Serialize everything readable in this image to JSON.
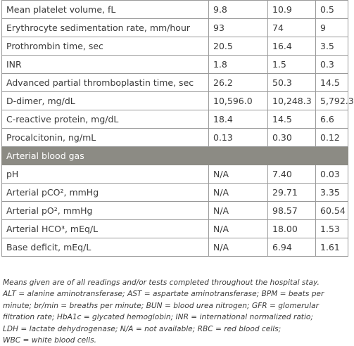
{
  "table": {
    "rows": [
      [
        "Mean platelet volume, fL",
        "9.8",
        "10.9",
        "0.5"
      ],
      [
        "Erythrocyte sedimentation rate, mm/hour",
        "93",
        "74",
        "9"
      ],
      [
        "Prothrombin time, sec",
        "20.5",
        "16.4",
        "3.5"
      ],
      [
        "INR",
        "1.8",
        "1.5",
        "0.3"
      ],
      [
        "Advanced partial thromboplastin time, sec",
        "26.2",
        "50.3",
        "14.5"
      ],
      [
        "D-dimer, mg/dL",
        "10,596.0",
        "10,248.3",
        "5,792.3"
      ],
      [
        "C-reactive protein, mg/dL",
        "18.4",
        "14.5",
        "6.6"
      ],
      [
        "Procalcitonin, ng/mL",
        "0.13",
        "0.30",
        "0.12"
      ]
    ],
    "section_title": "Arterial blood gas",
    "section_rows": [
      [
        "pH",
        "N/A",
        "7.40",
        "0.03"
      ],
      [
        "Arterial pCO², mmHg",
        "N/A",
        "29.71",
        "3.35"
      ],
      [
        "Arterial pO², mmHg",
        "N/A",
        "98.57",
        "60.54"
      ],
      [
        "Arterial HCO³, mEq/L",
        "N/A",
        "18.00",
        "1.53"
      ],
      [
        "Base deficit, mEq/L",
        "N/A",
        "6.94",
        "1.61"
      ]
    ]
  },
  "note": {
    "lines": [
      "Means given are of all readings and/or tests completed throughout the hospital stay.",
      "ALT = alanine aminotransferase; AST = aspartate aminotransferase; BPM = beats per",
      "minute; br/min = breaths per minute; BUN = blood urea nitrogen; GFR = glomerular",
      "filtration rate; HbA1c = glycated hemoglobin; INR = international normalized ratio;",
      "LDH = lactate dehydrogenase; N/A = not available; RBC = red blood cells;",
      "WBC = white blood cells."
    ]
  }
}
